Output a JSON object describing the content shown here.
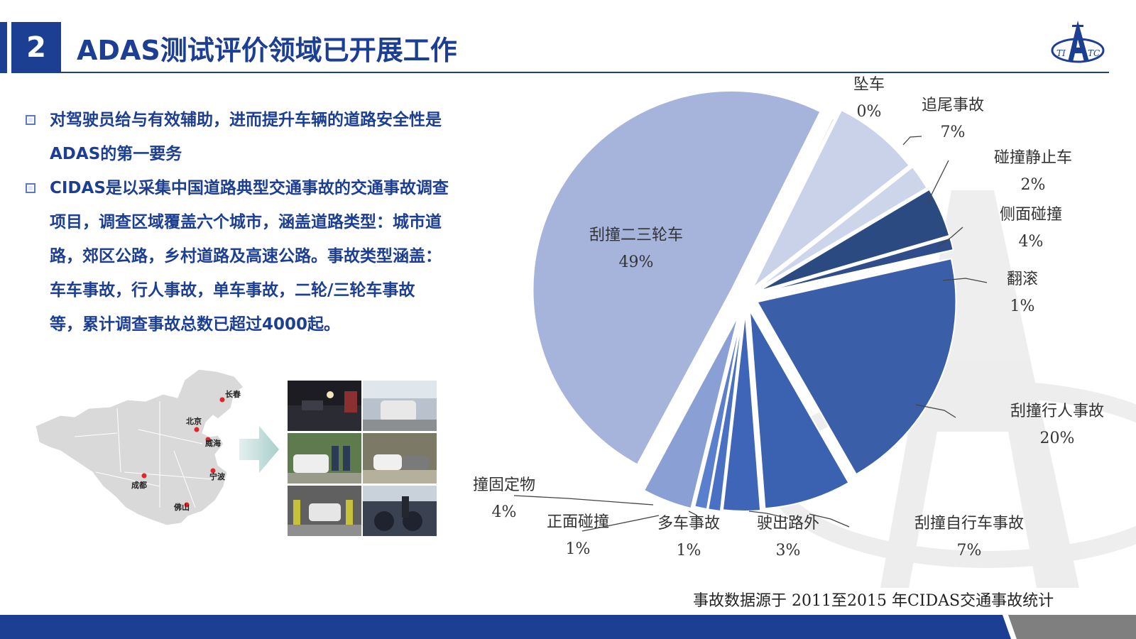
{
  "header": {
    "section_number": "2",
    "title": "ADAS测试评价领域已开展工作",
    "logo_text": "TIATC"
  },
  "bullets": [
    "对驾驶员给与有效辅助，进而提升车辆的道路安全性是ADAS的第一要务",
    "CIDAS是以采集中国道路典型交通事故的交通事故调查项目，调查区域覆盖六个城市，涵盖道路类型：城市道路，郊区公路，乡村道路及高速公路。事故类型涵盖：车车事故，行人事故，单车事故，二轮/三轮车事故等，累计调查事故总数已超过4000起。"
  ],
  "bullet_lines": [
    [
      "对驾驶员给与有效辅助，进而提升车辆的道路安全性是",
      "ADAS的第一要务"
    ],
    [
      "CIDAS是以采集中国道路典型交通事故的交通事故调查",
      "项目，调查区域覆盖六个城市，涵盖道路类型：城市道",
      "路，郊区公路，乡村道路及高速公路。事故类型涵盖：",
      "车车事故，行人事故，单车事故，二轮/三轮车事故",
      "等，累计调查事故总数已超过4000起。"
    ]
  ],
  "map": {
    "cities": [
      "长春",
      "北京",
      "威海",
      "宁波",
      "成都",
      "佛山"
    ],
    "marker_color": "#e0262b"
  },
  "photos_caption": "",
  "chart_data": {
    "type": "pie",
    "title": "",
    "slices": [
      {
        "name": "坠车",
        "value": 0,
        "label": "0%"
      },
      {
        "name": "追尾事故",
        "value": 7,
        "label": "7%"
      },
      {
        "name": "碰撞静止车",
        "value": 2,
        "label": "2%"
      },
      {
        "name": "侧面碰撞",
        "value": 4,
        "label": "4%"
      },
      {
        "name": "翻滚",
        "value": 1,
        "label": "1%"
      },
      {
        "name": "刮撞行人事故",
        "value": 20,
        "label": "20%"
      },
      {
        "name": "刮撞自行车事故",
        "value": 7,
        "label": "7%"
      },
      {
        "name": "驶出路外",
        "value": 3,
        "label": "3%"
      },
      {
        "name": "多车事故",
        "value": 1,
        "label": "1%"
      },
      {
        "name": "正面碰撞",
        "value": 1,
        "label": "1%"
      },
      {
        "name": "撞固定物",
        "value": 4,
        "label": "4%"
      },
      {
        "name": "刮撞二三轮车",
        "value": 49,
        "label": "49%"
      }
    ],
    "slice_colors": [
      "#a8b5d8",
      "#c9d2e9",
      "#cdd5ea",
      "#2c4a82",
      "#2f4d8a",
      "#3a5ea8",
      "#3b62b0",
      "#3f65b8",
      "#4a70c4",
      "#5a7fcc",
      "#8a9fd4",
      "#a6b4db"
    ],
    "legend": "none"
  },
  "source_note": "事故数据源于 2011至2015 年CIDAS交通事故统计",
  "colors": {
    "primary": "#1c3f94",
    "footer_dark": "#1c3f94",
    "footer_gray": "#7f7f7f"
  }
}
